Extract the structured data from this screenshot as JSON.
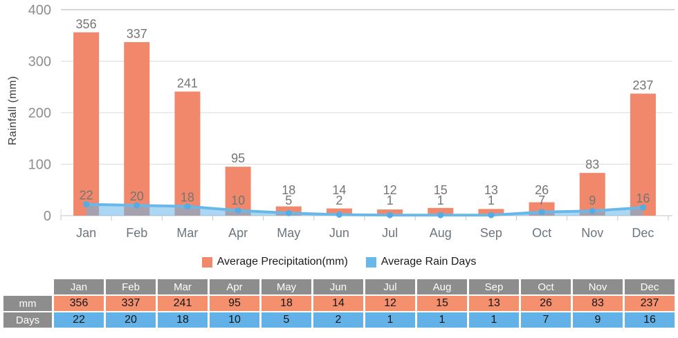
{
  "chart_data": {
    "type": "bar",
    "categories": [
      "Jan",
      "Feb",
      "Mar",
      "Apr",
      "May",
      "Jun",
      "Jul",
      "Aug",
      "Sep",
      "Oct",
      "Nov",
      "Dec"
    ],
    "series": [
      {
        "name": "Average Precipitation(mm)",
        "type": "bar",
        "color": "#F2886B",
        "values": [
          356,
          337,
          241,
          95,
          18,
          14,
          12,
          15,
          13,
          26,
          83,
          237
        ]
      },
      {
        "name": "Average Rain Days",
        "type": "area-line",
        "color": "#69B8EA",
        "marker_color": "#55ACE2",
        "area_fill": "rgba(102,183,232,0.55)",
        "values": [
          22,
          20,
          18,
          10,
          5,
          2,
          1,
          1,
          1,
          7,
          9,
          16
        ]
      }
    ],
    "title": "",
    "xlabel": "",
    "ylabel": "Rainfall (mm)",
    "ylim": [
      0,
      400
    ],
    "yticks": [
      0,
      100,
      200,
      300,
      400
    ],
    "grid": true,
    "legend_position": "bottom",
    "label_color": "#747474",
    "tick_color": "#8E8E8E",
    "month_color": "#6C757E"
  },
  "table": {
    "corner": "",
    "columns": [
      "Jan",
      "Feb",
      "Mar",
      "Apr",
      "May",
      "Jun",
      "Jul",
      "Aug",
      "Sep",
      "Oct",
      "Nov",
      "Dec"
    ],
    "header_color": "#8D8D8D",
    "header_text_color": "#FFFFFF",
    "rows": [
      {
        "label": "mm",
        "color": "#F5906F",
        "values": [
          356,
          337,
          241,
          95,
          18,
          14,
          12,
          15,
          13,
          26,
          83,
          237
        ]
      },
      {
        "label": "Days",
        "color": "#63B2E7",
        "values": [
          22,
          20,
          18,
          10,
          5,
          2,
          1,
          1,
          1,
          7,
          9,
          16
        ]
      }
    ]
  }
}
